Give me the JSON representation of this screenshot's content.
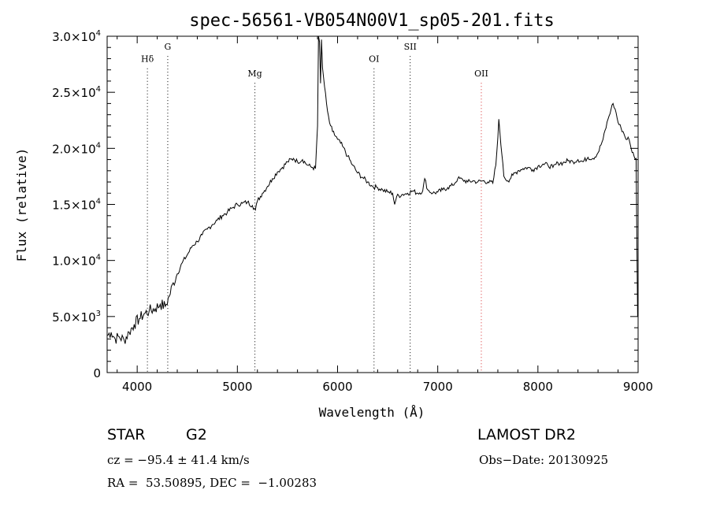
{
  "chart_data": {
    "type": "line",
    "title": "spec-56561-VB054N00V1_sp05-201.fits",
    "xlabel": "Wavelength (Å)",
    "ylabel": "Flux (relative)",
    "xlim": [
      3700,
      9000
    ],
    "ylim": [
      0,
      30000
    ],
    "x_ticks": [
      4000,
      5000,
      6000,
      7000,
      8000,
      9000
    ],
    "x_tick_labels": [
      "4000",
      "5000",
      "6000",
      "7000",
      "8000",
      "9000"
    ],
    "y_ticks": [
      0,
      5000,
      10000,
      15000,
      20000,
      25000,
      30000
    ],
    "y_tick_labels": [
      {
        "m": "0",
        "e": ""
      },
      {
        "m": "5.0×10",
        "e": "3"
      },
      {
        "m": "1.0×10",
        "e": "4"
      },
      {
        "m": "1.5×10",
        "e": "4"
      },
      {
        "m": "2.0×10",
        "e": "4"
      },
      {
        "m": "2.5×10",
        "e": "4"
      },
      {
        "m": "3.0×10",
        "e": "4"
      }
    ],
    "grid": false,
    "lines": [
      {
        "label": "Hδ",
        "wavelength": 4102,
        "color": "#000000",
        "label_flux": 27700
      },
      {
        "label": "G",
        "wavelength": 4305,
        "color": "#000000",
        "label_flux": 28800
      },
      {
        "label": "Mg",
        "wavelength": 5175,
        "color": "#000000",
        "label_flux": 26400
      },
      {
        "label": "OI",
        "wavelength": 6364,
        "color": "#000000",
        "label_flux": 27700
      },
      {
        "label": "SII",
        "wavelength": 6725,
        "color": "#000000",
        "label_flux": 28800
      },
      {
        "label": "OII",
        "wavelength": 7435,
        "color": "#d62728",
        "label_flux": 26400
      }
    ],
    "series": [
      {
        "color": "#000000",
        "points": [
          [
            3700,
            3300
          ],
          [
            3740,
            3600
          ],
          [
            3780,
            3000
          ],
          [
            3820,
            3200
          ],
          [
            3870,
            2900
          ],
          [
            3920,
            3600
          ],
          [
            3970,
            4300
          ],
          [
            4020,
            4800
          ],
          [
            4080,
            5300
          ],
          [
            4120,
            5500
          ],
          [
            4180,
            5700
          ],
          [
            4230,
            6100
          ],
          [
            4280,
            5900
          ],
          [
            4320,
            6800
          ],
          [
            4360,
            8000
          ],
          [
            4400,
            8800
          ],
          [
            4450,
            9800
          ],
          [
            4500,
            10500
          ],
          [
            4550,
            11300
          ],
          [
            4600,
            11700
          ],
          [
            4650,
            12300
          ],
          [
            4700,
            12800
          ],
          [
            4750,
            13200
          ],
          [
            4800,
            13600
          ],
          [
            4850,
            14000
          ],
          [
            4900,
            14300
          ],
          [
            4950,
            14700
          ],
          [
            5000,
            15000
          ],
          [
            5050,
            15100
          ],
          [
            5100,
            15200
          ],
          [
            5150,
            14900
          ],
          [
            5180,
            14500
          ],
          [
            5200,
            15300
          ],
          [
            5250,
            16000
          ],
          [
            5300,
            16600
          ],
          [
            5350,
            17300
          ],
          [
            5400,
            17900
          ],
          [
            5450,
            18300
          ],
          [
            5500,
            18800
          ],
          [
            5560,
            19100
          ],
          [
            5600,
            18800
          ],
          [
            5650,
            19000
          ],
          [
            5700,
            18500
          ],
          [
            5750,
            18300
          ],
          [
            5780,
            18200
          ],
          [
            5800,
            22000
          ],
          [
            5810,
            30200
          ],
          [
            5820,
            29500
          ],
          [
            5830,
            25800
          ],
          [
            5840,
            29700
          ],
          [
            5850,
            27200
          ],
          [
            5870,
            25500
          ],
          [
            5890,
            24000
          ],
          [
            5900,
            23300
          ],
          [
            5920,
            22300
          ],
          [
            5950,
            21500
          ],
          [
            6000,
            20800
          ],
          [
            6050,
            20200
          ],
          [
            6100,
            19300
          ],
          [
            6150,
            18500
          ],
          [
            6200,
            17800
          ],
          [
            6250,
            17400
          ],
          [
            6300,
            17000
          ],
          [
            6350,
            16600
          ],
          [
            6400,
            16500
          ],
          [
            6450,
            16300
          ],
          [
            6500,
            16100
          ],
          [
            6550,
            16000
          ],
          [
            6570,
            15000
          ],
          [
            6590,
            15700
          ],
          [
            6650,
            15900
          ],
          [
            6700,
            16000
          ],
          [
            6750,
            16200
          ],
          [
            6800,
            16000
          ],
          [
            6850,
            16200
          ],
          [
            6870,
            17300
          ],
          [
            6900,
            16300
          ],
          [
            6950,
            16000
          ],
          [
            7000,
            16100
          ],
          [
            7050,
            16300
          ],
          [
            7100,
            16500
          ],
          [
            7150,
            16700
          ],
          [
            7200,
            17300
          ],
          [
            7250,
            17200
          ],
          [
            7300,
            17000
          ],
          [
            7350,
            17100
          ],
          [
            7400,
            17000
          ],
          [
            7450,
            17100
          ],
          [
            7500,
            17000
          ],
          [
            7550,
            16900
          ],
          [
            7580,
            18500
          ],
          [
            7600,
            21000
          ],
          [
            7610,
            22600
          ],
          [
            7620,
            21500
          ],
          [
            7640,
            19500
          ],
          [
            7660,
            17500
          ],
          [
            7700,
            17100
          ],
          [
            7750,
            17600
          ],
          [
            7800,
            18000
          ],
          [
            7850,
            18200
          ],
          [
            7900,
            18300
          ],
          [
            7950,
            18100
          ],
          [
            8000,
            18400
          ],
          [
            8050,
            18600
          ],
          [
            8100,
            18500
          ],
          [
            8150,
            18300
          ],
          [
            8200,
            18700
          ],
          [
            8250,
            18700
          ],
          [
            8300,
            18900
          ],
          [
            8350,
            18800
          ],
          [
            8400,
            19000
          ],
          [
            8450,
            18800
          ],
          [
            8500,
            19200
          ],
          [
            8550,
            19100
          ],
          [
            8600,
            19600
          ],
          [
            8650,
            20800
          ],
          [
            8700,
            22600
          ],
          [
            8730,
            23500
          ],
          [
            8750,
            24000
          ],
          [
            8780,
            23200
          ],
          [
            8800,
            22300
          ],
          [
            8830,
            21800
          ],
          [
            8850,
            21500
          ],
          [
            8880,
            20800
          ],
          [
            8900,
            21000
          ],
          [
            8930,
            20000
          ],
          [
            8960,
            19300
          ],
          [
            8980,
            19100
          ],
          [
            8995,
            5000
          ]
        ]
      }
    ]
  },
  "info": {
    "object_type": "STAR",
    "subclass": "G2",
    "survey": "LAMOST DR2",
    "cz": "cz = −95.4 ± 41.4 km/s",
    "obs_date": "Obs−Date: 20130925",
    "coords": "RA =  53.50895, DEC =  −1.00283"
  }
}
